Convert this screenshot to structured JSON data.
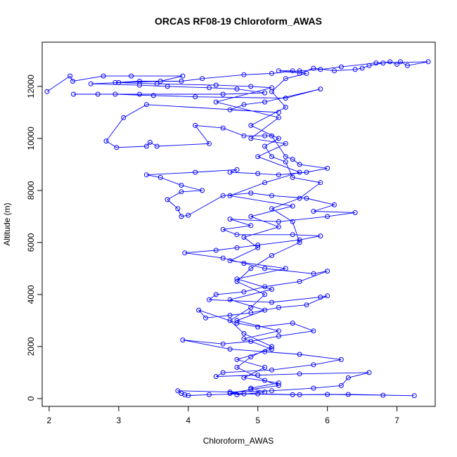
{
  "chart_data": {
    "type": "scatter",
    "title": "ORCAS RF08-19 Chloroform_AWAS",
    "xlabel": "Chloroform_AWAS",
    "ylabel": "Altitude (m)",
    "xlim": [
      1.9,
      7.55
    ],
    "ylim": [
      -300,
      13700
    ],
    "x_ticks": [
      2,
      3,
      4,
      5,
      6,
      7
    ],
    "y_ticks": [
      0,
      2000,
      4000,
      6000,
      8000,
      10000,
      12000
    ],
    "connected": true,
    "grid": false,
    "legend": "none",
    "colors": {
      "series": "#0000ff",
      "axes": "#000000",
      "background": "#ffffff"
    },
    "series": [
      {
        "points": [
          [
            1.97,
            11800
          ],
          [
            2.3,
            12400
          ],
          [
            2.34,
            12200
          ],
          [
            2.78,
            12400
          ],
          [
            3.18,
            12400
          ],
          [
            3.92,
            12400
          ],
          [
            3.6,
            12200
          ],
          [
            3.0,
            12150
          ],
          [
            2.6,
            12100
          ],
          [
            3.3,
            12050
          ],
          [
            3.7,
            12000
          ],
          [
            4.3,
            11950
          ],
          [
            4.7,
            11900
          ],
          [
            5.1,
            11750
          ],
          [
            4.5,
            11700
          ],
          [
            3.3,
            11700
          ],
          [
            2.7,
            11700
          ],
          [
            2.35,
            11700
          ],
          [
            2.95,
            11700
          ],
          [
            3.5,
            11650
          ],
          [
            4.1,
            11600
          ],
          [
            5.4,
            11550
          ],
          [
            5.9,
            11900
          ],
          [
            5.1,
            11400
          ],
          [
            4.8,
            11300
          ],
          [
            4.6,
            11100
          ],
          [
            5.3,
            11000
          ],
          [
            3.4,
            11300
          ],
          [
            3.07,
            10800
          ],
          [
            2.82,
            9900
          ],
          [
            2.97,
            9650
          ],
          [
            3.4,
            9700
          ],
          [
            3.45,
            9850
          ],
          [
            3.55,
            9700
          ],
          [
            4.3,
            9800
          ],
          [
            4.1,
            10500
          ],
          [
            4.5,
            10400
          ],
          [
            4.8,
            10100
          ],
          [
            5.1,
            10100
          ],
          [
            5.2,
            10100
          ],
          [
            5.4,
            9300
          ],
          [
            5.5,
            9200
          ],
          [
            5.6,
            9000
          ],
          [
            6.0,
            8850
          ],
          [
            5.7,
            8700
          ],
          [
            5.3,
            8600
          ],
          [
            5.0,
            8650
          ],
          [
            4.6,
            8700
          ],
          [
            4.7,
            8800
          ],
          [
            4.1,
            8700
          ],
          [
            3.4,
            8600
          ],
          [
            3.6,
            8500
          ],
          [
            3.9,
            8200
          ],
          [
            4.2,
            8000
          ],
          [
            3.9,
            7950
          ],
          [
            3.7,
            7650
          ],
          [
            3.85,
            7300
          ],
          [
            3.9,
            7000
          ],
          [
            4.0,
            7050
          ],
          [
            4.5,
            7800
          ],
          [
            4.9,
            7900
          ],
          [
            5.2,
            7800
          ],
          [
            5.7,
            7700
          ],
          [
            6.1,
            7450
          ],
          [
            5.8,
            7200
          ],
          [
            6.4,
            7150
          ],
          [
            6.0,
            7000
          ],
          [
            5.3,
            6800
          ],
          [
            4.6,
            6900
          ],
          [
            4.9,
            6650
          ],
          [
            4.5,
            6500
          ],
          [
            4.7,
            6300
          ],
          [
            5.5,
            6300
          ],
          [
            5.9,
            6250
          ],
          [
            5.6,
            6100
          ],
          [
            5.0,
            5900
          ],
          [
            4.7,
            5800
          ],
          [
            4.4,
            5700
          ],
          [
            3.95,
            5600
          ],
          [
            4.5,
            5400
          ],
          [
            4.8,
            5200
          ],
          [
            5.1,
            5000
          ],
          [
            5.8,
            4800
          ],
          [
            6.0,
            4900
          ],
          [
            5.6,
            4500
          ],
          [
            5.1,
            4300
          ],
          [
            4.8,
            4100
          ],
          [
            4.4,
            4000
          ],
          [
            4.3,
            3800
          ],
          [
            5.2,
            3700
          ],
          [
            5.9,
            3900
          ],
          [
            6.0,
            3950
          ],
          [
            5.7,
            3600
          ],
          [
            5.3,
            3500
          ],
          [
            4.9,
            3300
          ],
          [
            4.6,
            3200
          ],
          [
            4.25,
            3100
          ],
          [
            4.15,
            3400
          ],
          [
            4.7,
            2900
          ],
          [
            5.0,
            2750
          ],
          [
            5.5,
            2900
          ],
          [
            5.8,
            2600
          ],
          [
            5.3,
            2400
          ],
          [
            4.9,
            2200
          ],
          [
            4.5,
            2100
          ],
          [
            3.92,
            2250
          ],
          [
            4.6,
            1900
          ],
          [
            5.1,
            1800
          ],
          [
            5.6,
            1700
          ],
          [
            6.2,
            1500
          ],
          [
            5.8,
            1300
          ],
          [
            5.2,
            1100
          ],
          [
            4.5,
            1000
          ],
          [
            4.4,
            850
          ],
          [
            5.0,
            900
          ],
          [
            5.6,
            950
          ],
          [
            6.6,
            1000
          ],
          [
            6.3,
            800
          ],
          [
            6.2,
            500
          ],
          [
            5.8,
            400
          ],
          [
            5.2,
            300
          ],
          [
            4.6,
            250
          ],
          [
            3.85,
            300
          ],
          [
            3.9,
            200
          ],
          [
            3.95,
            150
          ],
          [
            4.0,
            120
          ],
          [
            4.3,
            150
          ],
          [
            4.8,
            180
          ],
          [
            5.5,
            150
          ],
          [
            6.0,
            160
          ],
          [
            6.8,
            130
          ],
          [
            7.25,
            110
          ],
          [
            6.3,
            160
          ],
          [
            5.6,
            150
          ],
          [
            5.0,
            180
          ],
          [
            4.6,
            200
          ],
          [
            4.9,
            350
          ],
          [
            5.3,
            500
          ],
          [
            5.1,
            700
          ],
          [
            4.7,
            1200
          ],
          [
            4.9,
            1600
          ],
          [
            5.2,
            2000
          ],
          [
            4.8,
            2500
          ],
          [
            4.6,
            3000
          ],
          [
            4.9,
            3500
          ],
          [
            5.1,
            4000
          ],
          [
            4.7,
            4500
          ],
          [
            4.9,
            5000
          ],
          [
            5.2,
            5500
          ],
          [
            5.6,
            6000
          ],
          [
            5.5,
            6800
          ],
          [
            5.2,
            7300
          ],
          [
            5.6,
            7700
          ],
          [
            5.9,
            8300
          ],
          [
            5.5,
            8500
          ],
          [
            5.4,
            9100
          ],
          [
            5.2,
            9300
          ],
          [
            5.1,
            9700
          ],
          [
            5.3,
            10000
          ],
          [
            4.9,
            10500
          ],
          [
            5.4,
            11200
          ],
          [
            5.2,
            11800
          ],
          [
            5.4,
            12300
          ],
          [
            5.7,
            12500
          ],
          [
            5.3,
            12600
          ],
          [
            5.5,
            12600
          ],
          [
            5.6,
            12500
          ],
          [
            5.8,
            12700
          ],
          [
            6.1,
            12600
          ],
          [
            6.4,
            12650
          ],
          [
            6.5,
            12700
          ],
          [
            6.6,
            12800
          ],
          [
            6.8,
            12900
          ],
          [
            6.9,
            12950
          ],
          [
            7.0,
            12850
          ],
          [
            7.05,
            12950
          ],
          [
            7.15,
            12800
          ],
          [
            7.45,
            12950
          ],
          [
            6.7,
            12900
          ],
          [
            6.2,
            12750
          ],
          [
            5.9,
            12650
          ],
          [
            5.6,
            12600
          ],
          [
            5.2,
            12500
          ],
          [
            4.8,
            12450
          ],
          [
            4.2,
            12300
          ],
          [
            3.9,
            12200
          ],
          [
            3.3,
            12200
          ],
          [
            2.95,
            12150
          ],
          [
            3.55,
            12100
          ],
          [
            4.4,
            12050
          ],
          [
            4.9,
            12000
          ],
          [
            5.2,
            11950
          ],
          [
            4.4,
            11400
          ],
          [
            5.3,
            10800
          ],
          [
            4.9,
            10000
          ],
          [
            5.4,
            9800
          ],
          [
            5.0,
            9300
          ],
          [
            5.6,
            8700
          ],
          [
            5.1,
            8300
          ],
          [
            4.6,
            7800
          ],
          [
            5.5,
            7400
          ],
          [
            4.9,
            7000
          ],
          [
            5.3,
            6600
          ],
          [
            4.8,
            6200
          ],
          [
            5.0,
            5800
          ],
          [
            4.6,
            5300
          ],
          [
            5.4,
            5000
          ],
          [
            4.7,
            4600
          ],
          [
            5.2,
            4200
          ],
          [
            4.6,
            3800
          ],
          [
            5.1,
            3400
          ],
          [
            4.7,
            3000
          ],
          [
            5.3,
            2600
          ],
          [
            4.8,
            2300
          ],
          [
            5.2,
            1900
          ],
          [
            4.7,
            1500
          ],
          [
            5.1,
            1200
          ],
          [
            4.8,
            800
          ],
          [
            5.3,
            600
          ],
          [
            4.9,
            400
          ],
          [
            5.1,
            250
          ],
          [
            4.7,
            150
          ]
        ]
      }
    ]
  }
}
